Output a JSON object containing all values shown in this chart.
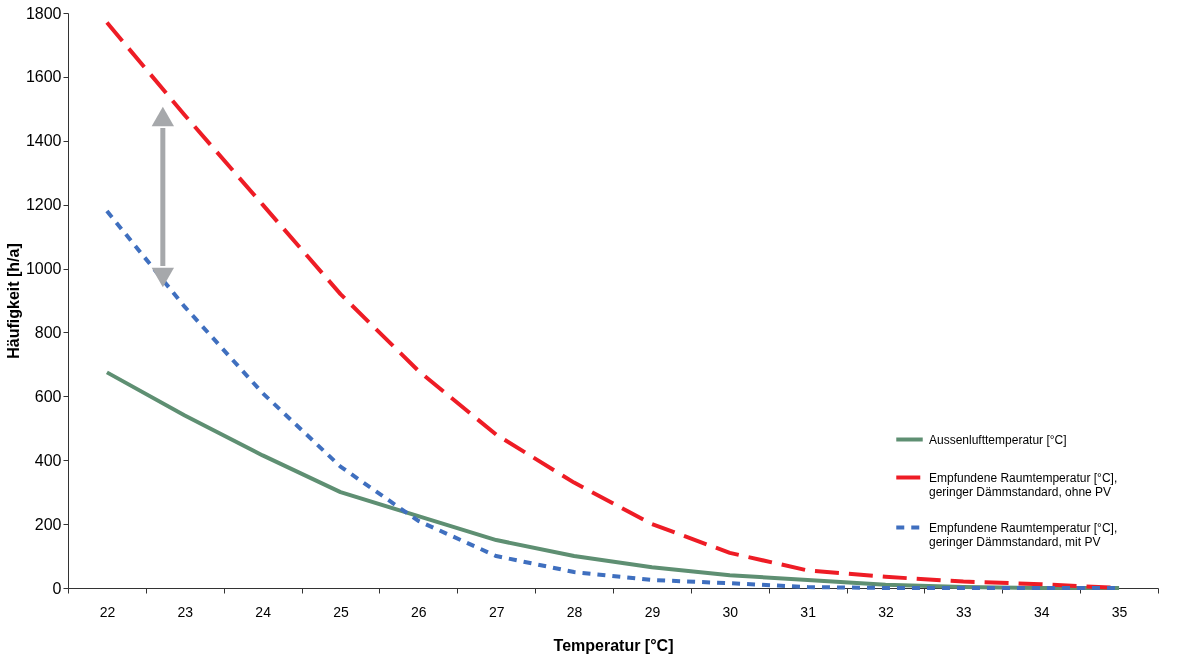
{
  "chart_data": {
    "type": "line",
    "xlabel": "Temperatur [°C]",
    "ylabel": "Häufigkeit [h/a]",
    "categories": [
      "22",
      "23",
      "24",
      "25",
      "26",
      "27",
      "28",
      "29",
      "30",
      "31",
      "32",
      "33",
      "34",
      "35"
    ],
    "series": [
      {
        "name": "Aussenlufttemperatur [°C]",
        "color": "#5e8f72",
        "line_style": "solid",
        "values": [
          675,
          540,
          415,
          300,
          225,
          150,
          100,
          65,
          40,
          25,
          10,
          3,
          0,
          0
        ]
      },
      {
        "name": "Empfundene Raumtemperatur [°C],\ngeringer Dämmstandard, ohne PV",
        "color": "#ee1c25",
        "line_style": "dashed",
        "values": [
          1770,
          1480,
          1200,
          920,
          680,
          480,
          330,
          200,
          110,
          55,
          35,
          20,
          12,
          0
        ]
      },
      {
        "name": "Empfundene Raumtemperatur [°C],\ngeringer Dämmstandard, mit PV",
        "color": "#3f6fbf",
        "line_style": "dotted",
        "values": [
          1180,
          880,
          610,
          380,
          210,
          100,
          50,
          25,
          15,
          3,
          0,
          0,
          0,
          0
        ]
      }
    ],
    "ylim": [
      0,
      1800
    ],
    "yticks": [
      0,
      200,
      400,
      600,
      800,
      1000,
      1200,
      1400,
      1600,
      1800
    ],
    "grid": false,
    "legend": "bottom right",
    "marker": "none"
  }
}
